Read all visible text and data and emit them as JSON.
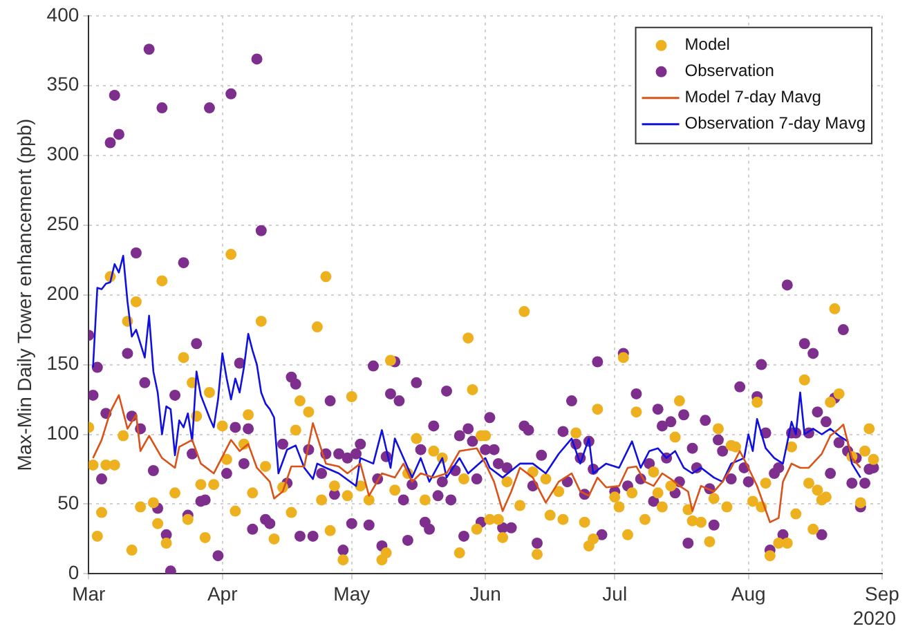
{
  "chart_data": {
    "type": "scatter",
    "ylabel": "Max-Min Daily Tower enhancement (ppb)",
    "annotations": [
      "2020"
    ],
    "xlim": [
      "2020-03-01",
      "2020-09-01"
    ],
    "xticks": [
      {
        "value": "2020-03-01",
        "label": "Mar"
      },
      {
        "value": "2020-04-01",
        "label": "Apr"
      },
      {
        "value": "2020-05-01",
        "label": "May"
      },
      {
        "value": "2020-06-01",
        "label": "Jun"
      },
      {
        "value": "2020-07-01",
        "label": "Jul"
      },
      {
        "value": "2020-08-01",
        "label": "Aug"
      },
      {
        "value": "2020-09-01",
        "label": "Sep"
      }
    ],
    "ylim": [
      0,
      400
    ],
    "yticks": [
      0,
      50,
      100,
      150,
      200,
      250,
      300,
      350,
      400
    ],
    "grid": true,
    "legend": "top right",
    "series": [
      {
        "name": "Model",
        "marker": "circle",
        "color": "#edb120",
        "x": [
          "2020-03-01",
          "2020-03-02",
          "2020-03-03",
          "2020-03-04",
          "2020-03-05",
          "2020-03-06",
          "2020-03-07",
          "2020-03-09",
          "2020-03-10",
          "2020-03-11",
          "2020-03-12",
          "2020-03-13",
          "2020-03-16",
          "2020-03-17",
          "2020-03-18",
          "2020-03-19",
          "2020-03-21",
          "2020-03-23",
          "2020-03-24",
          "2020-03-25",
          "2020-03-26",
          "2020-03-27",
          "2020-03-28",
          "2020-03-29",
          "2020-03-30",
          "2020-04-01",
          "2020-04-02",
          "2020-04-03",
          "2020-04-04",
          "2020-04-06",
          "2020-04-07",
          "2020-04-08",
          "2020-04-10",
          "2020-04-11",
          "2020-04-13",
          "2020-04-15",
          "2020-04-17",
          "2020-04-18",
          "2020-04-19",
          "2020-04-21",
          "2020-04-23",
          "2020-04-24",
          "2020-04-25",
          "2020-04-26",
          "2020-04-27",
          "2020-04-29",
          "2020-04-30",
          "2020-05-01",
          "2020-05-03",
          "2020-05-05",
          "2020-05-08",
          "2020-05-09",
          "2020-05-10",
          "2020-05-11",
          "2020-05-14",
          "2020-05-16",
          "2020-05-18",
          "2020-05-20",
          "2020-05-22",
          "2020-05-26",
          "2020-05-27",
          "2020-05-28",
          "2020-05-29",
          "2020-05-30",
          "2020-05-31",
          "2020-06-01",
          "2020-06-02",
          "2020-06-04",
          "2020-06-05",
          "2020-06-06",
          "2020-06-09",
          "2020-06-10",
          "2020-06-12",
          "2020-06-13",
          "2020-06-15",
          "2020-06-16",
          "2020-06-18",
          "2020-06-19",
          "2020-06-22",
          "2020-06-24",
          "2020-06-25",
          "2020-06-26",
          "2020-06-27",
          "2020-07-01",
          "2020-07-02",
          "2020-07-03",
          "2020-07-04",
          "2020-07-05",
          "2020-07-06",
          "2020-07-08",
          "2020-07-10",
          "2020-07-11",
          "2020-07-12",
          "2020-07-14",
          "2020-07-15",
          "2020-07-16",
          "2020-07-18",
          "2020-07-19",
          "2020-07-21",
          "2020-07-23",
          "2020-07-24",
          "2020-07-25",
          "2020-07-27",
          "2020-07-28",
          "2020-07-29",
          "2020-08-02",
          "2020-08-03",
          "2020-08-04",
          "2020-08-05",
          "2020-08-06",
          "2020-08-08",
          "2020-08-10",
          "2020-08-11",
          "2020-08-12",
          "2020-08-14",
          "2020-08-15",
          "2020-08-16",
          "2020-08-17",
          "2020-08-18",
          "2020-08-19",
          "2020-08-20",
          "2020-08-21",
          "2020-08-22",
          "2020-08-25",
          "2020-08-27",
          "2020-08-28",
          "2020-08-29",
          "2020-08-30"
        ],
        "values": [
          105,
          78,
          27,
          44,
          78,
          213,
          78,
          99,
          181,
          17,
          195,
          48,
          51,
          36,
          210,
          22,
          58,
          155,
          39,
          137,
          113,
          64,
          26,
          130,
          64,
          106,
          82,
          229,
          45,
          93,
          114,
          58,
          181,
          77,
          25,
          62,
          44,
          103,
          124,
          116,
          177,
          53,
          213,
          31,
          63,
          10,
          56,
          127,
          63,
          53,
          10,
          15,
          153,
          60,
          72,
          97,
          53,
          88,
          83,
          15,
          68,
          169,
          132,
          32,
          99,
          99,
          39,
          39,
          26,
          66,
          49,
          188,
          73,
          14,
          68,
          42,
          59,
          39,
          101,
          37,
          20,
          25,
          118,
          55,
          48,
          155,
          28,
          58,
          116,
          39,
          73,
          58,
          48,
          63,
          98,
          124,
          46,
          38,
          37,
          23,
          54,
          104,
          48,
          92,
          91,
          52,
          123,
          48,
          65,
          13,
          22,
          22,
          91,
          43,
          139,
          65,
          32,
          60,
          53,
          55,
          123,
          190,
          129,
          84,
          51,
          88,
          104,
          82
        ]
      },
      {
        "name": "Observation",
        "marker": "circle",
        "color": "#7e2f8e",
        "x": [
          "2020-03-01",
          "2020-03-02",
          "2020-03-03",
          "2020-03-04",
          "2020-03-05",
          "2020-03-06",
          "2020-03-07",
          "2020-03-08",
          "2020-03-10",
          "2020-03-11",
          "2020-03-12",
          "2020-03-13",
          "2020-03-14",
          "2020-03-15",
          "2020-03-16",
          "2020-03-17",
          "2020-03-18",
          "2020-03-19",
          "2020-03-20",
          "2020-03-21",
          "2020-03-23",
          "2020-03-24",
          "2020-03-25",
          "2020-03-26",
          "2020-03-27",
          "2020-03-28",
          "2020-03-29",
          "2020-03-31",
          "2020-04-02",
          "2020-04-03",
          "2020-04-04",
          "2020-04-05",
          "2020-04-06",
          "2020-04-07",
          "2020-04-08",
          "2020-04-09",
          "2020-04-10",
          "2020-04-11",
          "2020-04-12",
          "2020-04-15",
          "2020-04-16",
          "2020-04-17",
          "2020-04-18",
          "2020-04-19",
          "2020-04-21",
          "2020-04-22",
          "2020-04-24",
          "2020-04-25",
          "2020-04-26",
          "2020-04-27",
          "2020-04-28",
          "2020-04-29",
          "2020-04-30",
          "2020-05-01",
          "2020-05-02",
          "2020-05-03",
          "2020-05-05",
          "2020-05-06",
          "2020-05-07",
          "2020-05-08",
          "2020-05-09",
          "2020-05-10",
          "2020-05-11",
          "2020-05-12",
          "2020-05-13",
          "2020-05-14",
          "2020-05-15",
          "2020-05-16",
          "2020-05-17",
          "2020-05-18",
          "2020-05-19",
          "2020-05-20",
          "2020-05-21",
          "2020-05-22",
          "2020-05-23",
          "2020-05-24",
          "2020-05-25",
          "2020-05-26",
          "2020-05-27",
          "2020-05-28",
          "2020-05-29",
          "2020-05-30",
          "2020-05-31",
          "2020-06-01",
          "2020-06-02",
          "2020-06-03",
          "2020-06-04",
          "2020-06-05",
          "2020-06-06",
          "2020-06-07",
          "2020-06-10",
          "2020-06-11",
          "2020-06-12",
          "2020-06-13",
          "2020-06-14",
          "2020-06-19",
          "2020-06-20",
          "2020-06-21",
          "2020-06-22",
          "2020-06-23",
          "2020-06-24",
          "2020-06-25",
          "2020-06-26",
          "2020-06-27",
          "2020-06-28",
          "2020-07-01",
          "2020-07-03",
          "2020-07-04",
          "2020-07-06",
          "2020-07-07",
          "2020-07-09",
          "2020-07-10",
          "2020-07-11",
          "2020-07-12",
          "2020-07-13",
          "2020-07-14",
          "2020-07-15",
          "2020-07-16",
          "2020-07-17",
          "2020-07-18",
          "2020-07-19",
          "2020-07-20",
          "2020-07-22",
          "2020-07-23",
          "2020-07-24",
          "2020-07-25",
          "2020-07-26",
          "2020-07-28",
          "2020-07-30",
          "2020-07-31",
          "2020-08-01",
          "2020-08-03",
          "2020-08-04",
          "2020-08-05",
          "2020-08-06",
          "2020-08-07",
          "2020-08-08",
          "2020-08-09",
          "2020-08-10",
          "2020-08-11",
          "2020-08-12",
          "2020-08-14",
          "2020-08-15",
          "2020-08-16",
          "2020-08-17",
          "2020-08-18",
          "2020-08-19",
          "2020-08-20",
          "2020-08-21",
          "2020-08-22",
          "2020-08-23",
          "2020-08-24",
          "2020-08-25",
          "2020-08-26",
          "2020-08-27",
          "2020-08-28",
          "2020-08-29",
          "2020-08-30"
        ],
        "values": [
          171,
          128,
          148,
          68,
          115,
          309,
          343,
          315,
          158,
          113,
          230,
          104,
          137,
          376,
          74,
          47,
          334,
          28,
          2,
          128,
          223,
          42,
          86,
          165,
          52,
          53,
          334,
          13,
          72,
          344,
          105,
          151,
          79,
          104,
          32,
          369,
          246,
          39,
          36,
          93,
          65,
          141,
          136,
          27,
          89,
          27,
          72,
          86,
          124,
          57,
          86,
          17,
          83,
          36,
          86,
          93,
          35,
          149,
          68,
          20,
          84,
          129,
          152,
          124,
          53,
          24,
          64,
          137,
          89,
          37,
          32,
          106,
          56,
          66,
          131,
          53,
          74,
          99,
          27,
          104,
          95,
          68,
          37,
          89,
          112,
          89,
          79,
          33,
          76,
          33,
          106,
          103,
          63,
          22,
          85,
          102,
          66,
          124,
          93,
          83,
          57,
          95,
          75,
          152,
          28,
          59,
          158,
          63,
          129,
          68,
          79,
          52,
          118,
          106,
          83,
          109,
          58,
          66,
          114,
          22,
          90,
          76,
          110,
          61,
          35,
          96,
          88,
          68,
          134,
          76,
          66,
          127,
          150,
          101,
          17,
          72,
          76,
          28,
          207,
          101,
          101,
          165,
          101,
          158,
          116,
          28,
          109,
          72,
          126,
          94,
          175,
          88,
          65,
          83,
          48,
          65,
          75,
          76
        ]
      },
      {
        "name": "Model 7-day Mavg",
        "type": "line",
        "marker": "none",
        "color": "#d95319",
        "x": [
          "2020-03-02",
          "2020-03-04",
          "2020-03-06",
          "2020-03-08",
          "2020-03-10",
          "2020-03-12",
          "2020-03-13",
          "2020-03-15",
          "2020-03-18",
          "2020-03-21",
          "2020-03-22",
          "2020-03-25",
          "2020-03-27",
          "2020-03-30",
          "2020-04-03",
          "2020-04-05",
          "2020-04-07",
          "2020-04-09",
          "2020-04-12",
          "2020-04-13",
          "2020-04-15",
          "2020-04-17",
          "2020-04-20",
          "2020-04-22",
          "2020-04-25",
          "2020-04-28",
          "2020-04-30",
          "2020-05-03",
          "2020-05-05",
          "2020-05-08",
          "2020-05-11",
          "2020-05-13",
          "2020-05-15",
          "2020-05-17",
          "2020-05-20",
          "2020-05-23",
          "2020-05-26",
          "2020-05-30",
          "2020-06-01",
          "2020-06-03",
          "2020-06-05",
          "2020-06-07",
          "2020-06-09",
          "2020-06-12",
          "2020-06-15",
          "2020-06-18",
          "2020-06-21",
          "2020-06-23",
          "2020-06-25",
          "2020-06-27",
          "2020-06-29",
          "2020-07-02",
          "2020-07-04",
          "2020-07-06",
          "2020-07-08",
          "2020-07-10",
          "2020-07-12",
          "2020-07-14",
          "2020-07-16",
          "2020-07-18",
          "2020-07-19",
          "2020-07-21",
          "2020-07-24",
          "2020-07-26",
          "2020-07-28",
          "2020-07-30",
          "2020-08-01",
          "2020-08-03",
          "2020-08-06",
          "2020-08-08",
          "2020-08-09",
          "2020-08-11",
          "2020-08-13",
          "2020-08-15",
          "2020-08-18",
          "2020-08-20",
          "2020-08-22",
          "2020-08-23",
          "2020-08-25",
          "2020-08-27"
        ],
        "values": [
          83,
          96,
          116,
          128,
          104,
          114,
          88,
          99,
          83,
          76,
          91,
          96,
          79,
          72,
          96,
          88,
          93,
          76,
          66,
          54,
          59,
          77,
          77,
          108,
          79,
          77,
          72,
          79,
          56,
          72,
          69,
          79,
          66,
          72,
          69,
          72,
          88,
          90,
          79,
          66,
          45,
          59,
          76,
          69,
          51,
          66,
          72,
          59,
          56,
          69,
          62,
          63,
          76,
          77,
          66,
          63,
          72,
          68,
          63,
          59,
          45,
          63,
          59,
          66,
          76,
          88,
          76,
          63,
          37,
          40,
          66,
          79,
          76,
          76,
          86,
          99,
          104,
          107,
          83,
          76
        ]
      },
      {
        "name": "Observation 7-day Mavg",
        "type": "line",
        "marker": "none",
        "color": "#1010e0",
        "x": [
          "2020-03-02",
          "2020-03-03",
          "2020-03-04",
          "2020-03-05",
          "2020-03-06",
          "2020-03-07",
          "2020-03-08",
          "2020-03-09",
          "2020-03-10",
          "2020-03-11",
          "2020-03-12",
          "2020-03-13",
          "2020-03-14",
          "2020-03-15",
          "2020-03-16",
          "2020-03-17",
          "2020-03-18",
          "2020-03-19",
          "2020-03-20",
          "2020-03-21",
          "2020-03-22",
          "2020-03-23",
          "2020-03-24",
          "2020-03-25",
          "2020-03-26",
          "2020-03-27",
          "2020-03-28",
          "2020-03-29",
          "2020-03-30",
          "2020-03-31",
          "2020-04-01",
          "2020-04-02",
          "2020-04-03",
          "2020-04-04",
          "2020-04-05",
          "2020-04-06",
          "2020-04-07",
          "2020-04-08",
          "2020-04-09",
          "2020-04-10",
          "2020-04-11",
          "2020-04-12",
          "2020-04-13",
          "2020-04-14",
          "2020-04-16",
          "2020-04-18",
          "2020-04-20",
          "2020-04-22",
          "2020-04-23",
          "2020-04-25",
          "2020-04-28",
          "2020-05-02",
          "2020-05-03",
          "2020-05-06",
          "2020-05-08",
          "2020-05-10",
          "2020-05-11",
          "2020-05-13",
          "2020-05-15",
          "2020-05-17",
          "2020-05-19",
          "2020-05-22",
          "2020-05-23",
          "2020-05-26",
          "2020-05-28",
          "2020-06-01",
          "2020-06-02",
          "2020-06-05",
          "2020-06-09",
          "2020-06-12",
          "2020-06-15",
          "2020-06-18",
          "2020-06-21",
          "2020-06-23",
          "2020-06-25",
          "2020-06-26",
          "2020-06-29",
          "2020-07-02",
          "2020-07-05",
          "2020-07-07",
          "2020-07-09",
          "2020-07-11",
          "2020-07-13",
          "2020-07-15",
          "2020-07-17",
          "2020-07-19",
          "2020-07-21",
          "2020-07-24",
          "2020-07-26",
          "2020-07-28",
          "2020-07-31",
          "2020-08-01",
          "2020-08-02",
          "2020-08-03",
          "2020-08-05",
          "2020-08-07",
          "2020-08-09",
          "2020-08-11",
          "2020-08-12",
          "2020-08-13",
          "2020-08-14",
          "2020-08-16",
          "2020-08-18",
          "2020-08-20",
          "2020-08-22",
          "2020-08-24",
          "2020-08-25",
          "2020-08-27"
        ],
        "values": [
          148,
          205,
          204,
          208,
          209,
          222,
          216,
          228,
          195,
          170,
          175,
          165,
          155,
          185,
          145,
          130,
          100,
          120,
          118,
          85,
          110,
          105,
          115,
          95,
          145,
          128,
          120,
          112,
          105,
          125,
          158,
          140,
          125,
          140,
          130,
          148,
          172,
          160,
          150,
          130,
          122,
          118,
          112,
          72,
          89,
          92,
          76,
          68,
          79,
          76,
          72,
          63,
          83,
          79,
          103,
          76,
          97,
          83,
          69,
          83,
          66,
          83,
          69,
          83,
          72,
          83,
          76,
          69,
          79,
          79,
          72,
          86,
          97,
          79,
          97,
          72,
          79,
          76,
          95,
          76,
          88,
          90,
          83,
          88,
          76,
          72,
          76,
          69,
          66,
          79,
          83,
          100,
          88,
          111,
          90,
          83,
          79,
          109,
          100,
          130,
          100,
          104,
          100,
          104,
          99,
          95,
          79,
          69
        ]
      }
    ]
  }
}
